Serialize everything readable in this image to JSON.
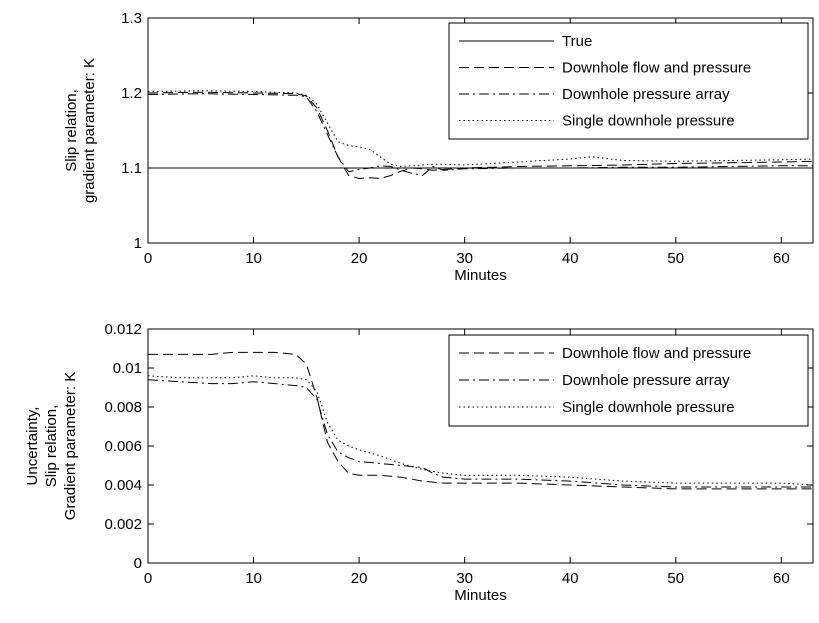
{
  "chart_data": [
    {
      "type": "line",
      "xlabel": "Minutes",
      "ylabel_lines": [
        "Slip relation,",
        "gradient parameter: K"
      ],
      "xlim": [
        0,
        63
      ],
      "ylim": [
        1,
        1.3
      ],
      "xticks": [
        0,
        10,
        20,
        30,
        40,
        50,
        60
      ],
      "yticks": [
        1,
        1.1,
        1.2,
        1.3
      ],
      "ytick_labels": [
        "1",
        "1.1",
        "1.2",
        "1.3"
      ],
      "grid": false,
      "legend_position": "top-right",
      "series": [
        {
          "name": "True",
          "style": "solid",
          "x": [
            0,
            63
          ],
          "y": [
            1.1,
            1.1
          ]
        },
        {
          "name": "Downhole flow and pressure",
          "style": "dashed",
          "x": [
            0,
            5,
            10,
            14,
            15,
            16,
            17,
            18,
            19,
            20,
            21,
            22,
            23,
            24,
            25,
            26,
            27,
            28,
            30,
            35,
            40,
            45,
            50,
            55,
            60,
            63
          ],
          "y": [
            1.2,
            1.201,
            1.2,
            1.199,
            1.196,
            1.18,
            1.15,
            1.115,
            1.09,
            1.086,
            1.087,
            1.086,
            1.09,
            1.096,
            1.1,
            1.099,
            1.097,
            1.098,
            1.1,
            1.102,
            1.103,
            1.104,
            1.106,
            1.107,
            1.108,
            1.109
          ]
        },
        {
          "name": "Downhole pressure array",
          "style": "dashdot",
          "x": [
            0,
            5,
            10,
            14,
            15,
            16,
            17,
            18,
            19,
            20,
            21,
            22,
            23,
            24,
            25,
            26,
            27,
            28,
            30,
            35,
            40,
            45,
            50,
            55,
            60,
            63
          ],
          "y": [
            1.198,
            1.199,
            1.198,
            1.197,
            1.195,
            1.175,
            1.145,
            1.115,
            1.095,
            1.098,
            1.1,
            1.103,
            1.102,
            1.097,
            1.093,
            1.09,
            1.102,
            1.097,
            1.099,
            1.1,
            1.1,
            1.101,
            1.101,
            1.102,
            1.103,
            1.103
          ]
        },
        {
          "name": "Single downhole pressure",
          "style": "dotted",
          "x": [
            0,
            5,
            10,
            14,
            15,
            16,
            17,
            18,
            19,
            20,
            21,
            22,
            23,
            24,
            25,
            26,
            27,
            28,
            30,
            35,
            40,
            42,
            45,
            50,
            55,
            60,
            63
          ],
          "y": [
            1.202,
            1.203,
            1.202,
            1.2,
            1.197,
            1.185,
            1.16,
            1.135,
            1.13,
            1.128,
            1.125,
            1.115,
            1.105,
            1.102,
            1.103,
            1.104,
            1.105,
            1.105,
            1.104,
            1.108,
            1.112,
            1.115,
            1.11,
            1.109,
            1.11,
            1.111,
            1.112
          ]
        }
      ]
    },
    {
      "type": "line",
      "xlabel": "Minutes",
      "ylabel_lines": [
        "Uncertainty,",
        "Slip relation,",
        "Gradient parameter: K"
      ],
      "xlim": [
        0,
        63
      ],
      "ylim": [
        0,
        0.012
      ],
      "xticks": [
        0,
        10,
        20,
        30,
        40,
        50,
        60
      ],
      "yticks": [
        0,
        0.002,
        0.004,
        0.006,
        0.008,
        0.01,
        0.012
      ],
      "ytick_labels": [
        "0",
        "0.002",
        "0.004",
        "0.006",
        "0.008",
        "0.01",
        "0.012"
      ],
      "grid": false,
      "legend_position": "top-right",
      "series": [
        {
          "name": "Downhole flow and pressure",
          "style": "dashed",
          "x": [
            0,
            3,
            6,
            8,
            10,
            12,
            14,
            15,
            16,
            17,
            18,
            19,
            20,
            22,
            24,
            26,
            28,
            30,
            35,
            40,
            45,
            50,
            55,
            60,
            63
          ],
          "y": [
            0.0107,
            0.0107,
            0.0107,
            0.0108,
            0.0108,
            0.0108,
            0.0107,
            0.0102,
            0.0085,
            0.0062,
            0.0052,
            0.0046,
            0.0045,
            0.0045,
            0.0044,
            0.0042,
            0.0041,
            0.0041,
            0.0041,
            0.004,
            0.0039,
            0.0038,
            0.0038,
            0.0038,
            0.0038
          ]
        },
        {
          "name": "Downhole pressure array",
          "style": "dashdot",
          "x": [
            0,
            3,
            6,
            8,
            10,
            12,
            14,
            15,
            16,
            17,
            18,
            19,
            20,
            22,
            24,
            26,
            27,
            28,
            30,
            35,
            40,
            45,
            50,
            55,
            60,
            63
          ],
          "y": [
            0.0094,
            0.0093,
            0.0092,
            0.0092,
            0.0093,
            0.0092,
            0.0091,
            0.009,
            0.0084,
            0.0066,
            0.0057,
            0.0054,
            0.0052,
            0.0051,
            0.005,
            0.0049,
            0.0046,
            0.0044,
            0.0043,
            0.0043,
            0.0042,
            0.004,
            0.0039,
            0.0039,
            0.0039,
            0.0039
          ]
        },
        {
          "name": "Single downhole pressure",
          "style": "dotted",
          "x": [
            0,
            3,
            6,
            8,
            10,
            12,
            14,
            15,
            16,
            17,
            18,
            19,
            20,
            22,
            24,
            26,
            28,
            30,
            35,
            40,
            45,
            50,
            55,
            60,
            63
          ],
          "y": [
            0.0096,
            0.0095,
            0.0095,
            0.0095,
            0.0096,
            0.0095,
            0.0095,
            0.0094,
            0.0088,
            0.0072,
            0.0063,
            0.006,
            0.0058,
            0.0055,
            0.0051,
            0.0048,
            0.0046,
            0.0045,
            0.0045,
            0.0044,
            0.0042,
            0.0041,
            0.0041,
            0.0041,
            0.004
          ]
        }
      ]
    }
  ]
}
